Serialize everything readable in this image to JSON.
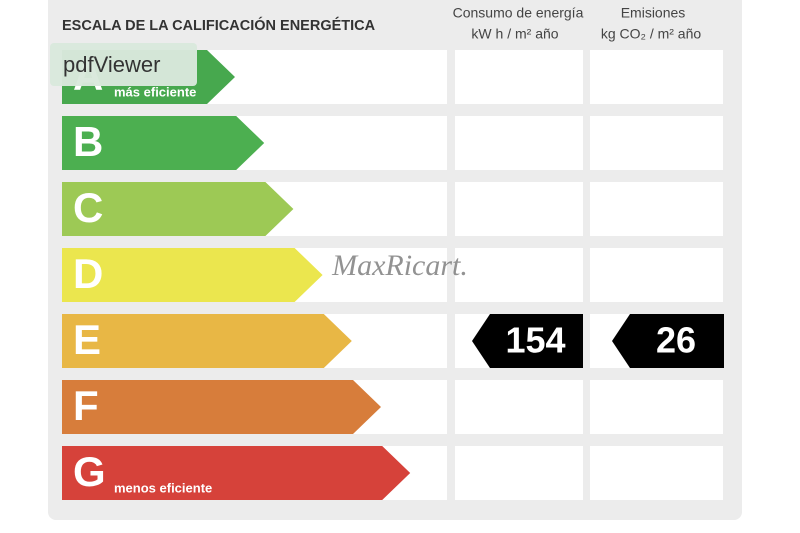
{
  "header": {
    "title": "ESCALA DE LA CALIFICACIÓN ENERGÉTICA",
    "consumption": [
      "Consumo de energía",
      "kW h  / m² año"
    ],
    "emissions": [
      "Emisiones",
      "kg CO₂  / m² año"
    ]
  },
  "ratings": [
    {
      "letter": "A",
      "note": "más eficiente",
      "color": "#47a84e"
    },
    {
      "letter": "B",
      "color": "#4caf50"
    },
    {
      "letter": "C",
      "color": "#9dc955"
    },
    {
      "letter": "D",
      "color": "#ebe64e"
    },
    {
      "letter": "E",
      "color": "#e8b745",
      "consumption": 154,
      "emissions": 26
    },
    {
      "letter": "F",
      "color": "#d77d3b"
    },
    {
      "letter": "G",
      "note": "menos eficiente",
      "color": "#d6423a"
    }
  ],
  "watermark": "MaxRicart.",
  "tooltip": "pdfViewer"
}
